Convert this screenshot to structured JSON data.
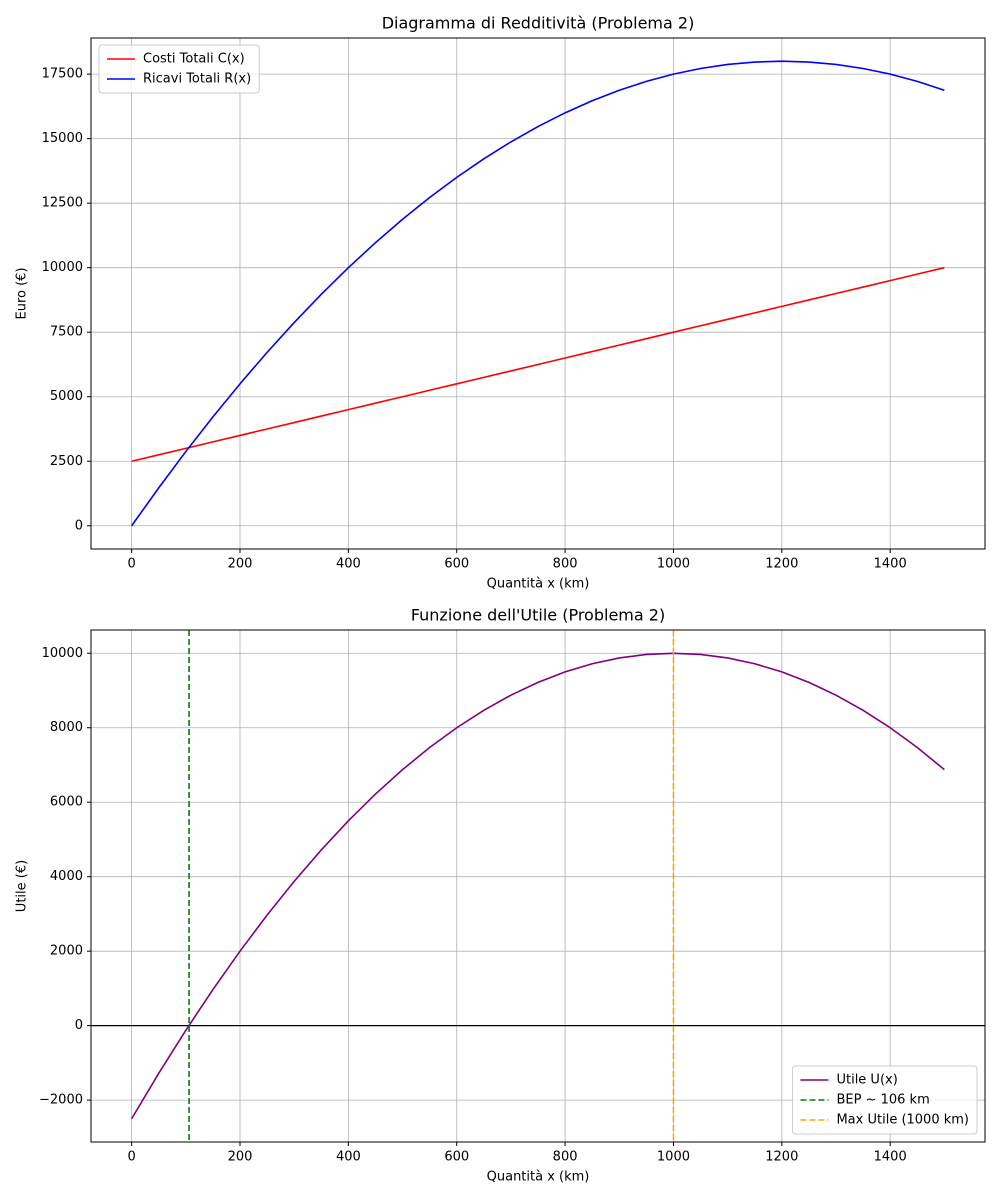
{
  "chart_data": [
    {
      "type": "line",
      "title": "Diagramma di Redditività (Problema 2)",
      "xlabel": "Quantità x (km)",
      "ylabel": "Euro (€)",
      "x": [
        0,
        50,
        100,
        150,
        200,
        250,
        300,
        350,
        400,
        450,
        500,
        550,
        600,
        650,
        700,
        750,
        800,
        850,
        900,
        950,
        1000,
        1050,
        1100,
        1150,
        1200,
        1250,
        1300,
        1350,
        1400,
        1450,
        1500
      ],
      "series": [
        {
          "name": "Costi Totali C(x)",
          "color": "red",
          "values": [
            2500,
            2750,
            3000,
            3250,
            3500,
            3750,
            4000,
            4250,
            4500,
            4750,
            5000,
            5250,
            5500,
            5750,
            6000,
            6250,
            6500,
            6750,
            7000,
            7250,
            7500,
            7750,
            8000,
            8250,
            8500,
            8750,
            9000,
            9250,
            9500,
            9750,
            10000
          ]
        },
        {
          "name": "Ricavi Totali R(x)",
          "color": "blue",
          "values": [
            0,
            1468.75,
            2875,
            4218.75,
            5500,
            6718.75,
            7875,
            8968.75,
            10000,
            10968.75,
            11875,
            12718.75,
            13500,
            14218.75,
            14875,
            15468.75,
            16000,
            16468.75,
            16875,
            17218.75,
            17500,
            17718.75,
            17875,
            17968.75,
            18000,
            17968.75,
            17875,
            17718.75,
            17500,
            17218.75,
            16875
          ]
        }
      ],
      "vlines": [],
      "hlines": [],
      "xlim": [
        -75,
        1575
      ],
      "xticks": [
        0,
        200,
        400,
        600,
        800,
        1000,
        1200,
        1400
      ],
      "ylim": [
        -900,
        18900
      ],
      "yticks": [
        0,
        2500,
        5000,
        7500,
        10000,
        12500,
        15000,
        17500
      ],
      "grid": true,
      "legend": "upper left"
    },
    {
      "type": "line",
      "title": "Funzione dell'Utile (Problema 2)",
      "xlabel": "Quantità x (km)",
      "ylabel": "Utile (€)",
      "x": [
        0,
        50,
        100,
        150,
        200,
        250,
        300,
        350,
        400,
        450,
        500,
        550,
        600,
        650,
        700,
        750,
        800,
        850,
        900,
        950,
        1000,
        1050,
        1100,
        1150,
        1200,
        1250,
        1300,
        1350,
        1400,
        1450,
        1500
      ],
      "series": [
        {
          "name": "Utile U(x)",
          "color": "purple",
          "values": [
            -2500,
            -1281.25,
            -125,
            968.75,
            2000,
            2968.75,
            3875,
            4718.75,
            5500,
            6218.75,
            6875,
            7468.75,
            8000,
            8468.75,
            8875,
            9218.75,
            9500,
            9718.75,
            9875,
            9968.75,
            10000,
            9968.75,
            9875,
            9718.75,
            9500,
            9218.75,
            8875,
            8468.75,
            8000,
            7468.75,
            6875
          ]
        }
      ],
      "vlines": [
        {
          "name": "BEP ~ 106 km",
          "color": "green",
          "x": 106
        },
        {
          "name": "Max Utile (1000 km)",
          "color": "orange",
          "x": 1000
        }
      ],
      "hlines": [
        {
          "y": 0,
          "color": "black"
        }
      ],
      "xlim": [
        -75,
        1575
      ],
      "xticks": [
        0,
        200,
        400,
        600,
        800,
        1000,
        1200,
        1400
      ],
      "ylim": [
        -3125,
        10625
      ],
      "yticks": [
        {
          "value": -2000,
          "label": "−2000"
        },
        0,
        2000,
        4000,
        6000,
        8000,
        10000
      ],
      "grid": true,
      "legend": "lower right"
    }
  ]
}
